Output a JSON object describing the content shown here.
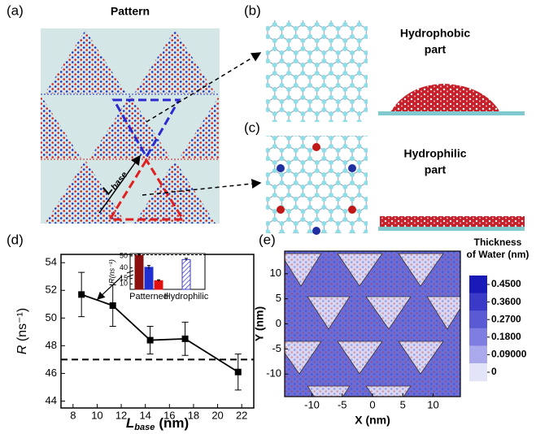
{
  "panel_a": {
    "label": "(a)",
    "title": "Pattern",
    "length_symbol": "L",
    "length_subscript": "base"
  },
  "panel_b": {
    "label": "(b)",
    "caption": [
      "Hydrophobic",
      "part"
    ]
  },
  "panel_c": {
    "label": "(c)",
    "caption": [
      "Hydrophilic",
      "part"
    ]
  },
  "chart_data": [
    {
      "type": "line",
      "label": "(d)",
      "x": [
        8.7,
        11.3,
        14.4,
        17.3,
        21.7
      ],
      "series": [
        {
          "color": "#000000",
          "values": [
            51.7,
            50.9,
            48.4,
            48.5,
            46.1
          ],
          "errors": [
            1.6,
            1.5,
            1.0,
            1.2,
            1.3
          ]
        }
      ],
      "reference_line": 47,
      "xlim": [
        7,
        23
      ],
      "xticks": [
        8,
        10,
        12,
        14,
        16,
        18,
        20,
        22
      ],
      "ylim": [
        43.5,
        54.6
      ],
      "yticks": [
        44,
        46,
        48,
        50,
        52,
        54
      ],
      "ylabel": {
        "symbol": "R",
        "unit": "(ns⁻¹)"
      },
      "xlabel": {
        "symbol": "L",
        "subscript": "base",
        "unit": "(nm)"
      }
    },
    {
      "type": "bar",
      "categories": [
        "Patterned",
        "Hydrophilic"
      ],
      "series": [
        {
          "color": "#8b1010",
          "values": [
            50.5,
            null
          ],
          "errors": [
            0.8,
            null
          ]
        },
        {
          "color": "#2030d0",
          "values": [
            40.5,
            null
          ],
          "errors": [
            1.5,
            null
          ]
        },
        {
          "color": "#e01010",
          "values": [
            13,
            null
          ],
          "errors": [
            0.8,
            null
          ]
        },
        {
          "color": "#3a3ad0",
          "values": [
            null,
            47
          ],
          "errors": [
            null,
            1.0
          ],
          "hatch": true
        }
      ],
      "reference_line": 51,
      "ylim": [
        5,
        52
      ],
      "ybreak": [
        17,
        37
      ],
      "yticks": [
        10,
        15,
        40,
        50
      ],
      "ylabel": "R(ns⁻¹)"
    },
    {
      "type": "contour",
      "label": "(e)",
      "xlim": [
        -14.5,
        14.5
      ],
      "ylim": [
        -14.5,
        14.5
      ],
      "xticks": [
        -10,
        -5,
        0,
        5,
        10
      ],
      "yticks": [
        -10,
        -5,
        0,
        5,
        10
      ],
      "xlabel": "X (nm)",
      "ylabel": "Y (nm)",
      "colorbar": {
        "title": [
          "Thickness",
          "of Water (nm)"
        ],
        "ticks": [
          {
            "value": 0.45,
            "label": "0.4500"
          },
          {
            "value": 0.36,
            "label": "0.3600"
          },
          {
            "value": 0.27,
            "label": "0.2700"
          },
          {
            "value": 0.18,
            "label": "0.1800"
          },
          {
            "value": 0.09,
            "label": "0.09000"
          },
          0
        ],
        "colors": [
          "#1a1ab8",
          "#3a3ac8",
          "#5a5ad4",
          "#7e7ee0",
          "#a9a9ec",
          "#e4e4f8"
        ]
      }
    }
  ]
}
